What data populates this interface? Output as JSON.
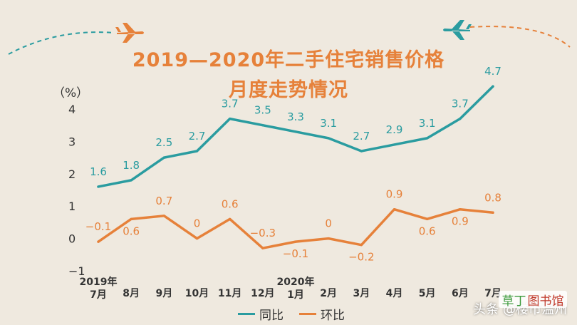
{
  "chart_data": {
    "type": "line",
    "title": "2019—2020年二手住宅销售价格",
    "subtitle": "月度走势情况",
    "ylabel": "（%）",
    "ylim": [
      -1,
      4
    ],
    "yticks": [
      -1,
      0,
      1,
      2,
      3,
      4
    ],
    "categories": [
      "2019年 7月",
      "8月",
      "9月",
      "10月",
      "11月",
      "12月",
      "2020年 1月",
      "2月",
      "3月",
      "4月",
      "5月",
      "6月",
      "7月"
    ],
    "category_lines": [
      [
        "2019年",
        "7月"
      ],
      [
        "8月"
      ],
      [
        "9月"
      ],
      [
        "10月"
      ],
      [
        "11月"
      ],
      [
        "12月"
      ],
      [
        "2020年",
        "1月"
      ],
      [
        "2月"
      ],
      [
        "3月"
      ],
      [
        "4月"
      ],
      [
        "5月"
      ],
      [
        "6月"
      ],
      [
        "7月"
      ]
    ],
    "series": [
      {
        "name": "同比",
        "color": "#2a9ca0",
        "values": [
          1.6,
          1.8,
          2.5,
          2.7,
          3.7,
          3.5,
          3.3,
          3.1,
          2.7,
          2.9,
          3.1,
          3.7,
          4.7
        ],
        "labels": [
          "1.6",
          "1.8",
          "2.5",
          "2.7",
          "3.7",
          "3.5",
          "3.3",
          "3.1",
          "2.7",
          "2.9",
          "3.1",
          "3.7",
          "4.7"
        ]
      },
      {
        "name": "环比",
        "color": "#e6813a",
        "values": [
          -0.1,
          0.6,
          0.7,
          0,
          0.6,
          -0.3,
          -0.1,
          0,
          -0.2,
          0.9,
          0.6,
          0.9,
          0.8
        ],
        "labels": [
          "−0.1",
          "0.6",
          "0.7",
          "0",
          "0.6",
          "−0.3",
          "−0.1",
          "0",
          "−0.2",
          "0.9",
          "0.6",
          "0.9",
          "0.8"
        ]
      }
    ],
    "legend_position": "bottom",
    "grid": false
  },
  "decor": {
    "plane_left_color": "#e6813a",
    "plane_right_color": "#2a9ca0"
  },
  "watermark": {
    "prefix": "头条 @楼市",
    "suffix": "温州",
    "stamp_green": "草丁",
    "stamp_red": "图书馆"
  }
}
